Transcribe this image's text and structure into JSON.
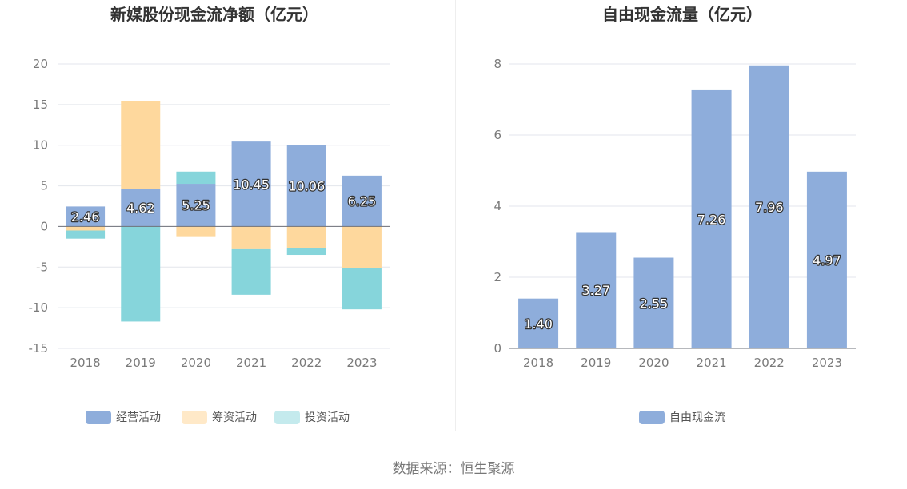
{
  "chart_data": [
    {
      "type": "bar",
      "stacked": true,
      "title": "新媒股份现金流净额（亿元）",
      "categories": [
        "2018",
        "2019",
        "2020",
        "2021",
        "2022",
        "2023"
      ],
      "series": [
        {
          "name": "经营活动",
          "values": [
            2.46,
            4.62,
            5.25,
            10.45,
            10.06,
            6.25
          ],
          "color": "#8eaddb",
          "labels": [
            "2.46",
            "4.62",
            "5.25",
            "10.45",
            "10.06",
            "6.25"
          ]
        },
        {
          "name": "筹资活动",
          "values": [
            -0.5,
            10.8,
            -1.2,
            -2.8,
            -2.7,
            -5.1
          ],
          "color": "#fed89d"
        },
        {
          "name": "投资活动",
          "values": [
            -1.0,
            -11.7,
            1.5,
            -5.6,
            -0.8,
            -5.1
          ],
          "color": "#86d5db"
        }
      ],
      "ylim": [
        -15,
        20
      ],
      "yticks": [
        20,
        15,
        10,
        5,
        0,
        -5,
        -10,
        -15
      ],
      "grid": true,
      "legend": "bottom",
      "legend_colors": [
        "#8eaddb",
        "#ffe9c8",
        "#c4eaed"
      ]
    },
    {
      "type": "bar",
      "title": "自由现金流量（亿元）",
      "categories": [
        "2018",
        "2019",
        "2020",
        "2021",
        "2022",
        "2023"
      ],
      "series": [
        {
          "name": "自由现金流",
          "values": [
            1.4,
            3.27,
            2.55,
            7.26,
            7.96,
            4.97
          ],
          "color": "#8eaddb",
          "labels": [
            "1.40",
            "3.27",
            "2.55",
            "7.26",
            "7.96",
            "4.97"
          ]
        }
      ],
      "ylim": [
        0,
        8
      ],
      "yticks": [
        8,
        6,
        4,
        2,
        0
      ],
      "grid": true,
      "legend": "bottom",
      "legend_colors": [
        "#8eaddb"
      ]
    }
  ],
  "footer": {
    "source": "数据来源：恒生聚源"
  }
}
